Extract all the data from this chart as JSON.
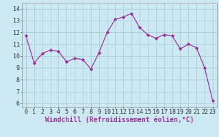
{
  "x": [
    0,
    1,
    2,
    3,
    4,
    5,
    6,
    7,
    8,
    9,
    10,
    11,
    12,
    13,
    14,
    15,
    16,
    17,
    18,
    19,
    20,
    21,
    22,
    23
  ],
  "y": [
    11.7,
    9.4,
    10.2,
    10.5,
    10.4,
    9.5,
    9.8,
    9.7,
    8.9,
    10.3,
    12.0,
    13.1,
    13.3,
    13.6,
    12.4,
    11.8,
    11.5,
    11.8,
    11.7,
    10.6,
    11.0,
    10.7,
    9.0,
    6.2
  ],
  "line_color": "#993399",
  "marker_color": "#993399",
  "bg_color": "#cce8f0",
  "grid_color": "#aaccdd",
  "xlabel": "Windchill (Refroidissement éolien,°C)",
  "ylabel_ticks": [
    6,
    7,
    8,
    9,
    10,
    11,
    12,
    13,
    14
  ],
  "xlim": [
    -0.5,
    23.5
  ],
  "ylim": [
    5.7,
    14.5
  ],
  "xticks": [
    0,
    1,
    2,
    3,
    4,
    5,
    6,
    7,
    8,
    9,
    10,
    11,
    12,
    13,
    14,
    15,
    16,
    17,
    18,
    19,
    20,
    21,
    22,
    23
  ],
  "axis_fontsize": 6.5,
  "tick_fontsize": 6.0,
  "xlabel_fontsize": 7.0
}
